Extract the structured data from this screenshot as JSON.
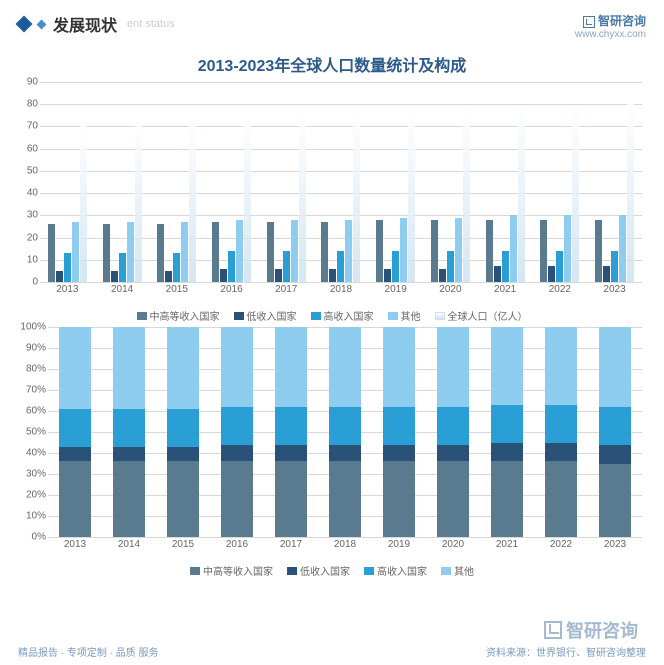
{
  "header": {
    "title_cn": "发展现状",
    "title_en": "ent status",
    "brand": "智研咨询",
    "url": "www.chyxx.com"
  },
  "chart_title": "2013-2023年全球人口数量统计及构成",
  "colors": {
    "series1": "#5a7a8f",
    "series2": "#2a5278",
    "series3": "#2a9fd6",
    "series4": "#8fcdf0",
    "series5_top": "#ffffff",
    "series5_bottom": "#cde2f0",
    "grid": "#d8d8d8",
    "text": "#666666",
    "title_color": "#2d5a8a"
  },
  "top_chart": {
    "type": "bar",
    "ylim": [
      0,
      90
    ],
    "ytick_step": 10,
    "years": [
      "2013",
      "2014",
      "2015",
      "2016",
      "2017",
      "2018",
      "2019",
      "2020",
      "2021",
      "2022",
      "2023"
    ],
    "series": {
      "s1": [
        26,
        26,
        26,
        27,
        27,
        27,
        28,
        28,
        28,
        28,
        28
      ],
      "s2": [
        5,
        5,
        5,
        6,
        6,
        6,
        6,
        6,
        7,
        7,
        7
      ],
      "s3": [
        13,
        13,
        13,
        14,
        14,
        14,
        14,
        14,
        14,
        14,
        14
      ],
      "s4": [
        27,
        27,
        27,
        28,
        28,
        28,
        29,
        29,
        30,
        30,
        30
      ],
      "s5": [
        71,
        72,
        73,
        74,
        75,
        76,
        77,
        78,
        79,
        79,
        80
      ]
    },
    "legend": [
      "中高等收入国家",
      "低收入国家",
      "高收入国家",
      "其他",
      "全球人口（亿人）"
    ]
  },
  "bottom_chart": {
    "type": "stacked_bar_100",
    "ylim": [
      0,
      100
    ],
    "ytick_step": 10,
    "years": [
      "2013",
      "2014",
      "2015",
      "2016",
      "2017",
      "2018",
      "2019",
      "2020",
      "2021",
      "2022",
      "2023"
    ],
    "stacks": {
      "s1": [
        36,
        36,
        36,
        36,
        36,
        36,
        36,
        36,
        36,
        36,
        35
      ],
      "s2": [
        7,
        7,
        7,
        8,
        8,
        8,
        8,
        8,
        9,
        9,
        9
      ],
      "s3": [
        18,
        18,
        18,
        18,
        18,
        18,
        18,
        18,
        18,
        18,
        18
      ],
      "s4": [
        39,
        39,
        39,
        38,
        38,
        38,
        38,
        38,
        37,
        37,
        38
      ]
    },
    "legend": [
      "中高等收入国家",
      "低收入国家",
      "高收入国家",
      "其他"
    ]
  },
  "footer": {
    "left": "精品报告 · 专项定制 · 品质 服务",
    "right": "资料来源：世界银行、智研咨询整理"
  },
  "watermark": "智研咨询",
  "fonts": {
    "title_pt": 16,
    "axis_pt": 10,
    "legend_pt": 10
  }
}
